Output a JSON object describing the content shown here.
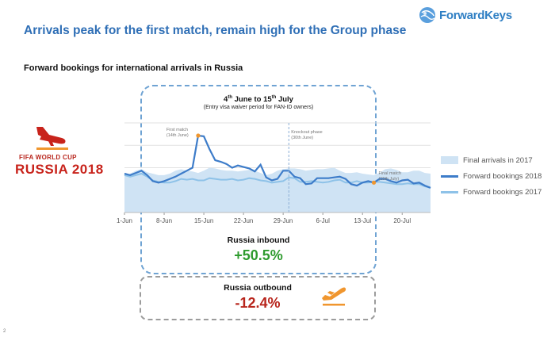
{
  "header": {
    "title": "Arrivals peak for the first match, remain high for the Group phase",
    "logo_text": "ForwardKeys"
  },
  "subtitle": "Forward bookings for international arrivals in Russia",
  "worldcup": {
    "line1": "FIFA WORLD CUP",
    "line2": "RUSSIA 2018"
  },
  "period": {
    "start_day": "4",
    "start_sup": "th",
    "start_month": " June to ",
    "end_day": "15",
    "end_sup": "th",
    "end_month": " July",
    "note": "(Entry visa waiver period for FAN-ID owners)"
  },
  "inbound": {
    "label": "Russia inbound",
    "value": "+50.5%"
  },
  "outbound": {
    "label": "Russia outbound",
    "value": "-12.4%"
  },
  "page_number": "2",
  "colors": {
    "title": "#2f6fb6",
    "final_2017": "#cfe3f4",
    "bookings_2018": "#3d7cc9",
    "bookings_2017": "#8ec2e8",
    "marker": "#f0962e",
    "inbound_value": "#2e9b2e",
    "outbound_value": "#b8251c"
  },
  "icons": [
    "globe-icon",
    "airplane-landing-icon",
    "airplane-takeoff-icon"
  ],
  "chart_data": {
    "type": "area",
    "title": "",
    "xlabel": "",
    "ylabel": "",
    "x": [
      "1-Jun",
      "2-Jun",
      "3-Jun",
      "4-Jun",
      "5-Jun",
      "6-Jun",
      "7-Jun",
      "8-Jun",
      "9-Jun",
      "10-Jun",
      "11-Jun",
      "12-Jun",
      "13-Jun",
      "14-Jun",
      "15-Jun",
      "16-Jun",
      "17-Jun",
      "18-Jun",
      "19-Jun",
      "20-Jun",
      "21-Jun",
      "22-Jun",
      "23-Jun",
      "24-Jun",
      "25-Jun",
      "26-Jun",
      "27-Jun",
      "28-Jun",
      "29-Jun",
      "30-Jun",
      "1-Jul",
      "2-Jul",
      "3-Jul",
      "4-Jul",
      "5-Jul",
      "6-Jul",
      "7-Jul",
      "8-Jul",
      "9-Jul",
      "10-Jul",
      "11-Jul",
      "12-Jul",
      "13-Jul",
      "14-Jul",
      "15-Jul",
      "16-Jul",
      "17-Jul",
      "18-Jul",
      "19-Jul",
      "20-Jul",
      "21-Jul",
      "22-Jul",
      "23-Jul",
      "24-Jul",
      "25-Jul"
    ],
    "x_tick_labels": [
      "1-Jun",
      "8-Jun",
      "15-Jun",
      "22-Jun",
      "29-Jun",
      "6-Jul",
      "13-Jul",
      "20-Jul"
    ],
    "ylim": [
      0,
      12
    ],
    "grid": true,
    "legend_position": "right",
    "series": [
      {
        "name": "Final arrivals in 2017",
        "type": "area",
        "values": [
          5.0,
          5.2,
          5.6,
          5.8,
          5.4,
          5.2,
          5.0,
          5.0,
          5.2,
          5.6,
          5.8,
          5.6,
          5.5,
          5.3,
          5.6,
          6.0,
          5.9,
          5.7,
          5.6,
          5.6,
          5.5,
          5.6,
          5.7,
          5.6,
          5.3,
          5.0,
          5.2,
          5.6,
          5.8,
          5.9,
          5.9,
          5.8,
          5.6,
          5.7,
          5.8,
          5.8,
          5.9,
          6.0,
          5.6,
          5.3,
          5.3,
          5.4,
          5.2,
          5.1,
          5.0,
          5.3,
          5.8,
          5.9,
          5.7,
          5.4,
          5.4,
          5.6,
          5.6,
          5.3,
          5.2
        ]
      },
      {
        "name": "Forward bookings 2018",
        "type": "line",
        "values": [
          5.2,
          5.0,
          5.3,
          5.6,
          5.0,
          4.2,
          4.0,
          4.2,
          4.5,
          4.8,
          5.2,
          5.6,
          6.0,
          10.3,
          10.2,
          8.5,
          7.0,
          6.8,
          6.5,
          6.0,
          6.3,
          6.1,
          5.9,
          5.5,
          6.4,
          4.7,
          4.3,
          4.5,
          5.6,
          5.6,
          4.8,
          4.6,
          3.8,
          3.9,
          4.6,
          4.6,
          4.6,
          4.7,
          4.8,
          4.5,
          3.8,
          3.6,
          4.0,
          4.2,
          4.0,
          4.5,
          4.5,
          4.2,
          4.0,
          4.3,
          4.4,
          3.9,
          4.0,
          3.6,
          3.3
        ]
      },
      {
        "name": "Forward bookings 2017",
        "type": "line",
        "values": [
          5.0,
          4.8,
          5.0,
          5.2,
          4.8,
          4.3,
          4.1,
          4.0,
          4.0,
          4.2,
          4.5,
          4.4,
          4.5,
          4.3,
          4.3,
          4.6,
          4.5,
          4.4,
          4.4,
          4.5,
          4.3,
          4.4,
          4.6,
          4.5,
          4.3,
          4.2,
          4.0,
          4.1,
          4.2,
          4.7,
          4.6,
          4.1,
          4.1,
          4.2,
          4.1,
          4.0,
          4.1,
          4.3,
          4.4,
          4.0,
          4.0,
          4.2,
          4.0,
          4.0,
          4.1,
          4.1,
          4.0,
          3.9,
          3.8,
          3.8,
          3.9,
          3.8,
          3.8,
          3.5,
          3.3
        ]
      }
    ],
    "annotations": [
      {
        "label": "First match",
        "sub_label": "(14th June)",
        "x": "14-Jun",
        "y": 10.3
      },
      {
        "label": "Knockout phase",
        "sub_label": "(30th June)",
        "x": "30-Jun"
      },
      {
        "label": "Final match",
        "sub_label": "(15th July)",
        "x": "15-Jul",
        "y": 4.0
      }
    ]
  }
}
